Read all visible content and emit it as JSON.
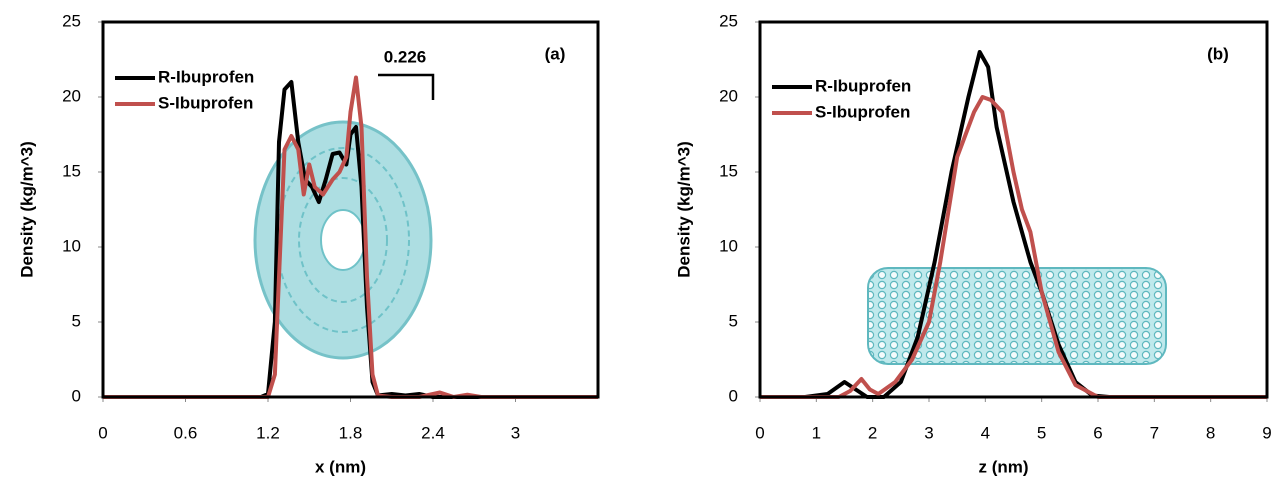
{
  "chart_data": [
    {
      "type": "line",
      "annotation_title": "(a)",
      "annotation": "0.226",
      "xlabel": "x (nm)",
      "ylabel": "Density (kg/m^3)",
      "xlim": [
        0,
        3.6
      ],
      "ylim": [
        0,
        25
      ],
      "xticks": [
        0,
        0.6,
        1.2,
        1.8,
        2.4,
        3
      ],
      "yticks": [
        0,
        5,
        10,
        15,
        20,
        25
      ],
      "series": [
        {
          "name": "R-Ibuprofen",
          "color": "#000000",
          "x": [
            0,
            1.15,
            1.2,
            1.25,
            1.28,
            1.32,
            1.37,
            1.42,
            1.47,
            1.52,
            1.57,
            1.62,
            1.67,
            1.72,
            1.77,
            1.8,
            1.84,
            1.88,
            1.92,
            1.96,
            2.0,
            2.1,
            2.2,
            2.3,
            2.4,
            3.6
          ],
          "values": [
            0,
            0,
            0.2,
            5,
            17,
            20.5,
            21,
            17,
            14.5,
            14,
            13,
            14.5,
            16.2,
            16.3,
            15.5,
            17.5,
            18,
            14,
            6,
            1,
            0.1,
            0.2,
            0.1,
            0.2,
            0,
            0
          ]
        },
        {
          "name": "S-Ibuprofen",
          "color": "#c0504d",
          "x": [
            0,
            1.2,
            1.25,
            1.28,
            1.32,
            1.37,
            1.42,
            1.46,
            1.5,
            1.54,
            1.6,
            1.67,
            1.72,
            1.77,
            1.8,
            1.84,
            1.88,
            1.92,
            1.96,
            2.0,
            2.1,
            2.3,
            2.45,
            2.55,
            2.65,
            2.75,
            3.6
          ],
          "values": [
            0,
            0,
            1.5,
            8,
            16.5,
            17.4,
            16.5,
            13.5,
            15.5,
            14,
            13.5,
            14.5,
            15,
            16,
            19,
            21.3,
            18,
            8,
            1.5,
            0.1,
            0,
            0,
            0.3,
            0,
            0.15,
            0,
            0
          ]
        }
      ]
    },
    {
      "type": "line",
      "annotation_title": "(b)",
      "xlabel": "z (nm)",
      "ylabel": "Density (kg/m^3)",
      "xlim": [
        0,
        9
      ],
      "ylim": [
        0,
        25
      ],
      "xticks": [
        0,
        1,
        2,
        3,
        4,
        5,
        6,
        7,
        8,
        9
      ],
      "yticks": [
        0,
        5,
        10,
        15,
        20,
        25
      ],
      "series": [
        {
          "name": "R-Ibuprofen",
          "color": "#000000",
          "x": [
            0,
            0.8,
            1.2,
            1.5,
            1.7,
            1.9,
            2.2,
            2.5,
            2.8,
            3.1,
            3.4,
            3.7,
            3.9,
            4.05,
            4.2,
            4.5,
            4.8,
            5.0,
            5.3,
            5.6,
            5.9,
            6.2,
            9
          ],
          "values": [
            0,
            0,
            0.2,
            1,
            0.5,
            0,
            0,
            1,
            4,
            9,
            15,
            20,
            23,
            22,
            18,
            13,
            9,
            7,
            3.5,
            1,
            0.1,
            0,
            0
          ]
        },
        {
          "name": "S-Ibuprofen",
          "color": "#c0504d",
          "x": [
            0,
            1.4,
            1.6,
            1.8,
            1.95,
            2.1,
            2.4,
            2.7,
            3.0,
            3.2,
            3.5,
            3.8,
            3.95,
            4.1,
            4.3,
            4.5,
            4.65,
            4.8,
            5.0,
            5.3,
            5.6,
            6.0,
            9
          ],
          "values": [
            0,
            0,
            0.4,
            1.2,
            0.5,
            0.2,
            1,
            2.5,
            5,
            9,
            16,
            19,
            20,
            19.8,
            19,
            15,
            12.5,
            11,
            7,
            3,
            0.8,
            0,
            0
          ]
        }
      ]
    }
  ]
}
